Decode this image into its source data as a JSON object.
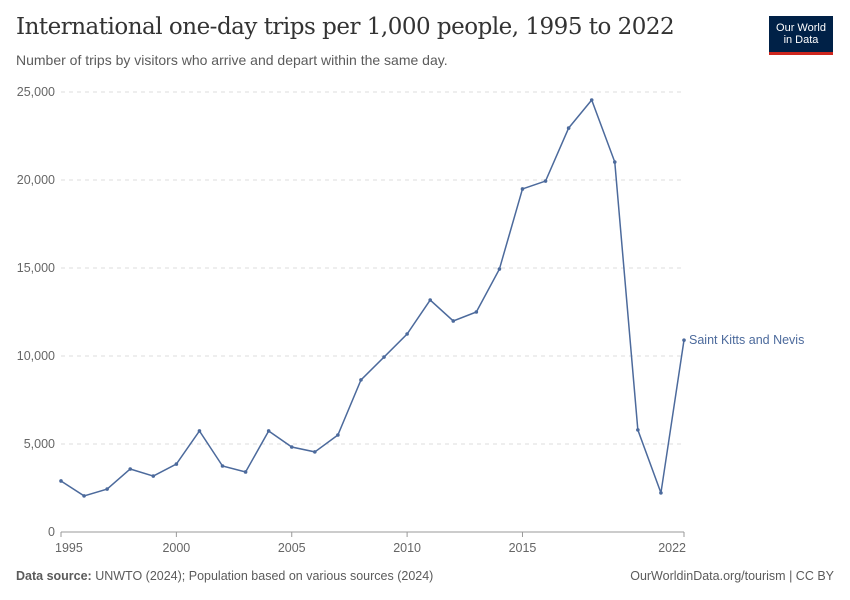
{
  "header": {
    "title": "International one-day trips per 1,000 people, 1995 to 2022",
    "subtitle": "Number of trips by visitors who arrive and depart within the same day.",
    "logo": [
      "Our World",
      "in Data"
    ]
  },
  "footer": {
    "source_label": "Data source:",
    "source_text": " UNWTO (2024); Population based on various sources (2024)",
    "credit": "OurWorldinData.org/tourism | CC BY"
  },
  "chart_data": {
    "type": "line",
    "title": "International one-day trips per 1,000 people, 1995 to 2022",
    "xlim": [
      1995,
      2022
    ],
    "ylim": [
      0,
      25000
    ],
    "x_ticks": [
      1995,
      2000,
      2005,
      2010,
      2015,
      2022
    ],
    "y_ticks": [
      0,
      5000,
      10000,
      15000,
      20000,
      25000
    ],
    "y_tick_labels": [
      "0",
      "5,000",
      "10,000",
      "15,000",
      "20,000",
      "25,000"
    ],
    "grid": "horizontal dashed",
    "legend": "right end label",
    "series": [
      {
        "name": "Saint Kitts and Nevis",
        "color": "#4c6a9c",
        "x": [
          1995,
          1996,
          1997,
          1998,
          1999,
          2000,
          2001,
          2002,
          2003,
          2004,
          2005,
          2006,
          2007,
          2008,
          2009,
          2010,
          2011,
          2012,
          2013,
          2014,
          2015,
          2016,
          2017,
          2018,
          2019,
          2020,
          2021,
          2022
        ],
        "values": [
          2900,
          2050,
          2440,
          3580,
          3180,
          3860,
          5740,
          3750,
          3410,
          5740,
          4830,
          4550,
          5510,
          8640,
          9940,
          11250,
          13180,
          11990,
          12500,
          14940,
          19490,
          19940,
          22950,
          24545,
          21020,
          5800,
          2220,
          10900
        ]
      }
    ]
  }
}
